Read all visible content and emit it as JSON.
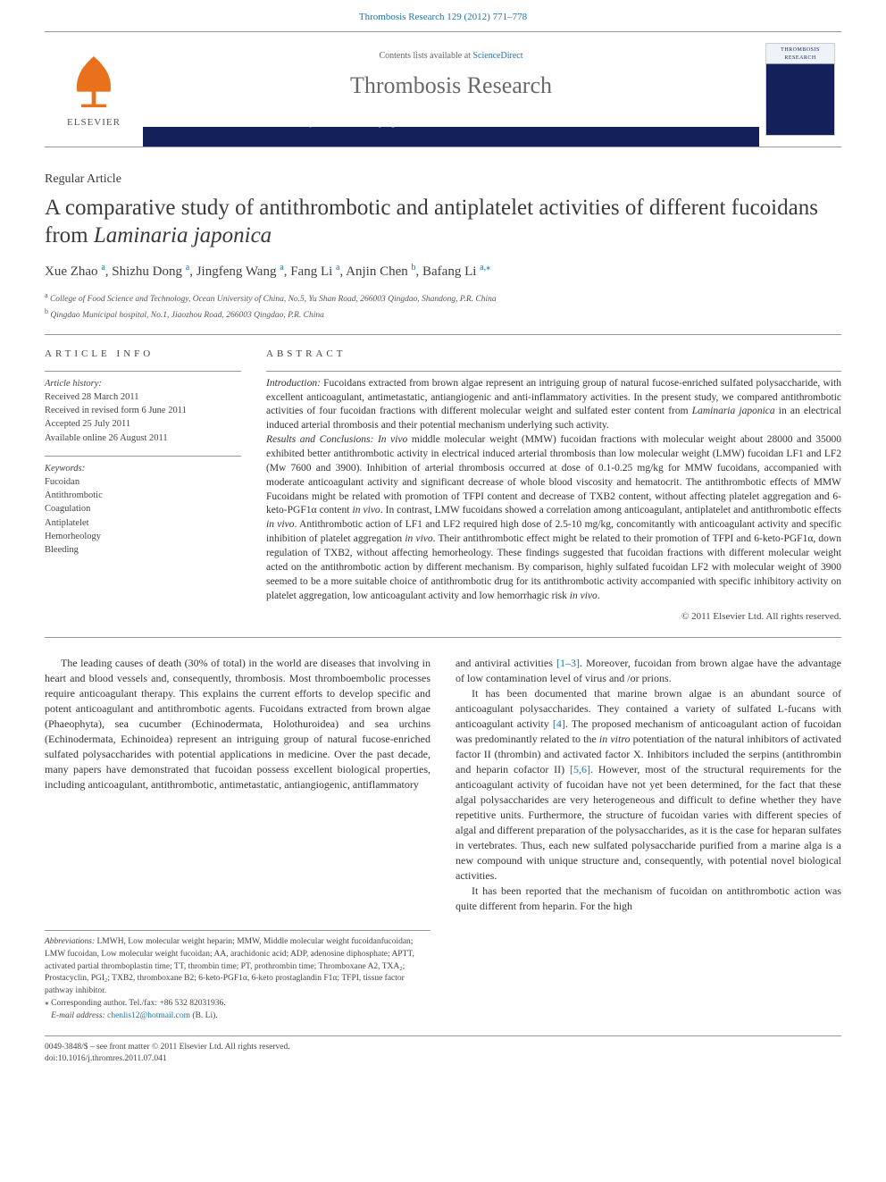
{
  "topLink": {
    "citation": "Thrombosis Research 129 (2012) 771–778",
    "color": "#1b73b3"
  },
  "header": {
    "publisherName": "ELSEVIER",
    "contentsLine": "Contents lists available at ",
    "contentsLink": "ScienceDirect",
    "journalName": "Thrombosis Research",
    "homepageLabel": "journal homepage: www.elsevier.com/locate/thromres",
    "coverLabel": "THROMBOSIS RESEARCH",
    "bandColor": "#13205a",
    "logoColor": "#e9711c"
  },
  "articleType": "Regular Article",
  "title": {
    "main": "A comparative study of antithrombotic and antiplatelet activities of different fucoidans from ",
    "species": "Laminaria japonica"
  },
  "authors": [
    {
      "name": "Xue Zhao",
      "aff": "a"
    },
    {
      "name": "Shizhu Dong",
      "aff": "a"
    },
    {
      "name": "Jingfeng Wang",
      "aff": "a"
    },
    {
      "name": "Fang Li",
      "aff": "a"
    },
    {
      "name": "Anjin Chen",
      "aff": "b"
    },
    {
      "name": "Bafang Li",
      "aff": "a",
      "corr": true
    }
  ],
  "affiliations": [
    {
      "mark": "a",
      "text": "College of Food Science and Technology, Ocean University of China, No.5, Yu Shan Road, 266003 Qingdao, Shandong, P.R. China"
    },
    {
      "mark": "b",
      "text": "Qingdao Municipal hospital, No.1, Jiaozhou Road, 266003 Qingdao, P.R. China"
    }
  ],
  "articleInfo": {
    "heading": "article info",
    "history": {
      "title": "Article history:",
      "lines": [
        "Received 28 March 2011",
        "Received in revised form 6 June 2011",
        "Accepted 25 July 2011",
        "Available online 26 August 2011"
      ]
    },
    "keywords": {
      "title": "Keywords:",
      "items": [
        "Fucoidan",
        "Antithrombotic",
        "Coagulation",
        "Antiplatelet",
        "Hemorheology",
        "Bleeding"
      ]
    }
  },
  "abstract": {
    "heading": "abstract",
    "intro": "Introduction:",
    "introText": " Fucoidans extracted from brown algae represent an intriguing group of natural fucose-enriched sulfated polysaccharide, with excellent anticoagulant, antimetastatic, antiangiogenic and anti-inflammatory activities. In the present study, we compared antithrombotic activities of four fucoidan fractions with different molecular weight and sulfated ester content from ",
    "introSpecies": "Laminaria japonica",
    "introTail": " in an electrical induced arterial thrombosis and their potential mechanism underlying such activity.",
    "results": "Results and Conclusions:",
    "resultsText1": " In vivo",
    "resultsText2": " middle molecular weight (MMW) fucoidan fractions with molecular weight about 28000 and 35000 exhibited better antithrombotic activity in electrical induced arterial thrombosis than low molecular weight (LMW) fucoidan LF1 and LF2 (Mw 7600 and 3900). Inhibition of arterial thrombosis occurred at dose of 0.1-0.25 mg/kg for MMW fucoidans, accompanied with moderate anticoagulant activity and significant decrease of whole blood viscosity and hematocrit. The antithrombotic effects of MMW Fucoidans might be related with promotion of TFPI content and decrease of TXB2 content, without affecting platelet aggregation and 6-keto-PGF1α content ",
    "resultsInVivo1": "in vivo",
    "resultsText3": ". In contrast, LMW fucoidans showed a correlation among anticoagulant, antiplatelet and antithrombotic effects ",
    "resultsInVivo2": "in vivo",
    "resultsText4": ". Antithrombotic action of LF1 and LF2 required high dose of 2.5-10 mg/kg, concomitantly with anticoagulant activity and specific inhibition of platelet aggregation ",
    "resultsInVivo3": "in vivo",
    "resultsText5": ". Their antithrombotic effect might be related to their promotion of TFPI and 6-keto-PGF1α, down regulation of TXB2, without affecting hemorheology. These findings suggested that fucoidan fractions with different molecular weight acted on the antithrombotic action by different mechanism. By comparison, highly sulfated fucoidan LF2 with molecular weight of 3900 seemed to be a more suitable choice of antithrombotic drug for its antithrombotic activity accompanied with specific inhibitory activity on platelet aggregation, low anticoagulant activity and low hemorrhagic risk ",
    "resultsInVivo4": "in vivo",
    "resultsTail": ".",
    "copyright": "© 2011 Elsevier Ltd. All rights reserved."
  },
  "body": {
    "left": {
      "p1": "The leading causes of death (30% of total) in the world are diseases that involving in heart and blood vessels and, consequently, thrombosis. Most thromboembolic processes require anticoagulant therapy. This explains the current efforts to develop specific and potent anticoagulant and antithrombotic agents. Fucoidans extracted from brown algae (Phaeophyta), sea cucumber (Echinodermata, Holothuroidea) and sea urchins (Echinodermata, Echinoidea) represent an intriguing group of natural fucose-enriched sulfated polysaccharides with potential applications in medicine. Over the past decade, many papers have demonstrated that fucoidan possess excellent biological properties, including anticoagulant, antithrombotic, antimetastatic, antiangiogenic, antiflammatory"
    },
    "right": {
      "p1a": "and antiviral activities ",
      "p1ref": "[1–3]",
      "p1b": ". Moreover, fucoidan from brown algae have the advantage of low contamination level of virus and /or prions.",
      "p2a": "It has been documented that marine brown algae is an abundant source of anticoagulant polysaccharides. They contained a variety of sulfated L-fucans with anticoagulant activity ",
      "p2ref1": "[4]",
      "p2b": ". The proposed mechanism of anticoagulant action of fucoidan was predominantly related to the ",
      "p2invitro": "in vitro",
      "p2c": " potentiation of the natural inhibitors of activated factor II (thrombin) and activated factor X. Inhibitors included the serpins (antithrombin and heparin cofactor II) ",
      "p2ref2": "[5,6]",
      "p2d": ". However, most of the structural requirements for the anticoagulant activity of fucoidan have not yet been determined, for the fact that these algal polysaccharides are very heterogeneous and difficult to define whether they have repetitive units. Furthermore, the structure of fucoidan varies with different species of algal and different preparation of the polysaccharides, as it is the case for heparan sulfates in vertebrates. Thus, each new sulfated polysaccharide purified from a marine alga is a new compound with unique structure and, consequently, with potential novel biological activities.",
      "p3": "It has been reported that the mechanism of fucoidan on antithrombotic action was quite different from heparin. For the high"
    }
  },
  "footer": {
    "abbrevLabel": "Abbreviations:",
    "abbrevText": " LMWH, Low molecular weight heparin; MMW, Middle molecular weight fucoidanfucoidan; LMW fucoidan, Low molecular weight fucoidan; AA, arachidonic acid; ADP, adenosine diphosphate; APTT, activated partial thromboplastin time; TT, thrombin time; PT, prothrombin time; Thromboxane A2, TXA₂; Prostacyclin, PGI₂; TXB2, thromboxane B2; 6-keto-PGF1α, 6-keto prostaglandin F1α; TFPI, tissue factor pathway inhibitor.",
    "corrLabel": "⁎ Corresponding author. Tel./fax: +86 532 82031936.",
    "emailLabel": "E-mail address:",
    "email": "chenlis12@hotmail.com",
    "emailTail": " (B. Li)."
  },
  "bottomBar": {
    "line1": "0049-3848/$ – see front matter © 2011 Elsevier Ltd. All rights reserved.",
    "line2": "doi:10.1016/j.thromres.2011.07.041"
  },
  "style": {
    "linkColor": "#1b73b3",
    "pageWidth": 992,
    "pageHeight": 1323,
    "bodyFont": "Georgia, 'Times New Roman', serif"
  }
}
